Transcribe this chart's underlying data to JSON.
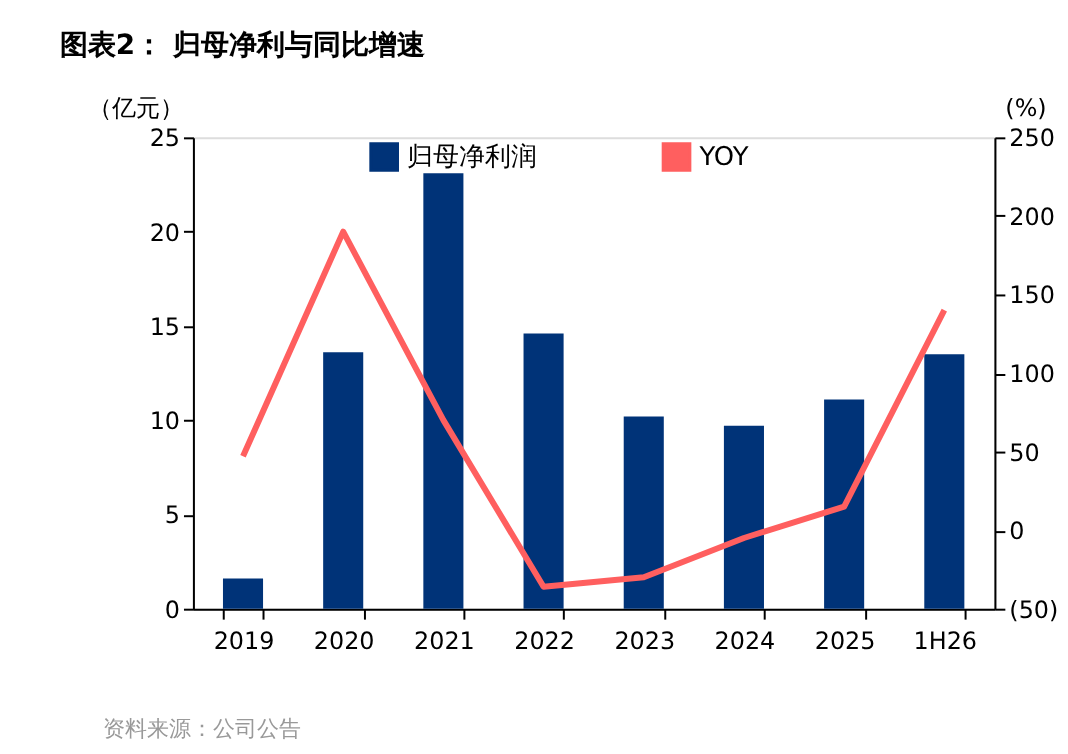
{
  "chart_data": {
    "type": "bar",
    "title": "图表2：  归母净利与同比增速",
    "ylabel": "（亿元）",
    "y2label": "(%)",
    "categories": [
      "2019",
      "2020",
      "2021",
      "2022",
      "2023",
      "2024",
      "2025",
      "1H26"
    ],
    "series": [
      {
        "name": "归母净利润",
        "color": "#003378",
        "values": [
          1.6,
          13.6,
          23.1,
          14.6,
          10.2,
          9.7,
          11.1,
          13.5
        ]
      },
      {
        "name": "YOY",
        "type": "line",
        "axis": "y2",
        "color": "#ff5f5f",
        "values": [
          47,
          190,
          70,
          -36,
          -30,
          -5,
          15,
          140
        ]
      }
    ],
    "ylim": [
      0,
      25
    ],
    "yticks": [
      0,
      5,
      10,
      15,
      20,
      25
    ],
    "y2lim": [
      -50,
      250
    ],
    "y2ticks": [
      {
        "value": -50,
        "label": "(50)"
      },
      0,
      50,
      100,
      150,
      200,
      250
    ],
    "grid": false,
    "legend": "top",
    "marker": "none",
    "line_style": "solid",
    "annotations": [
      "资料来源：公司公告"
    ]
  }
}
